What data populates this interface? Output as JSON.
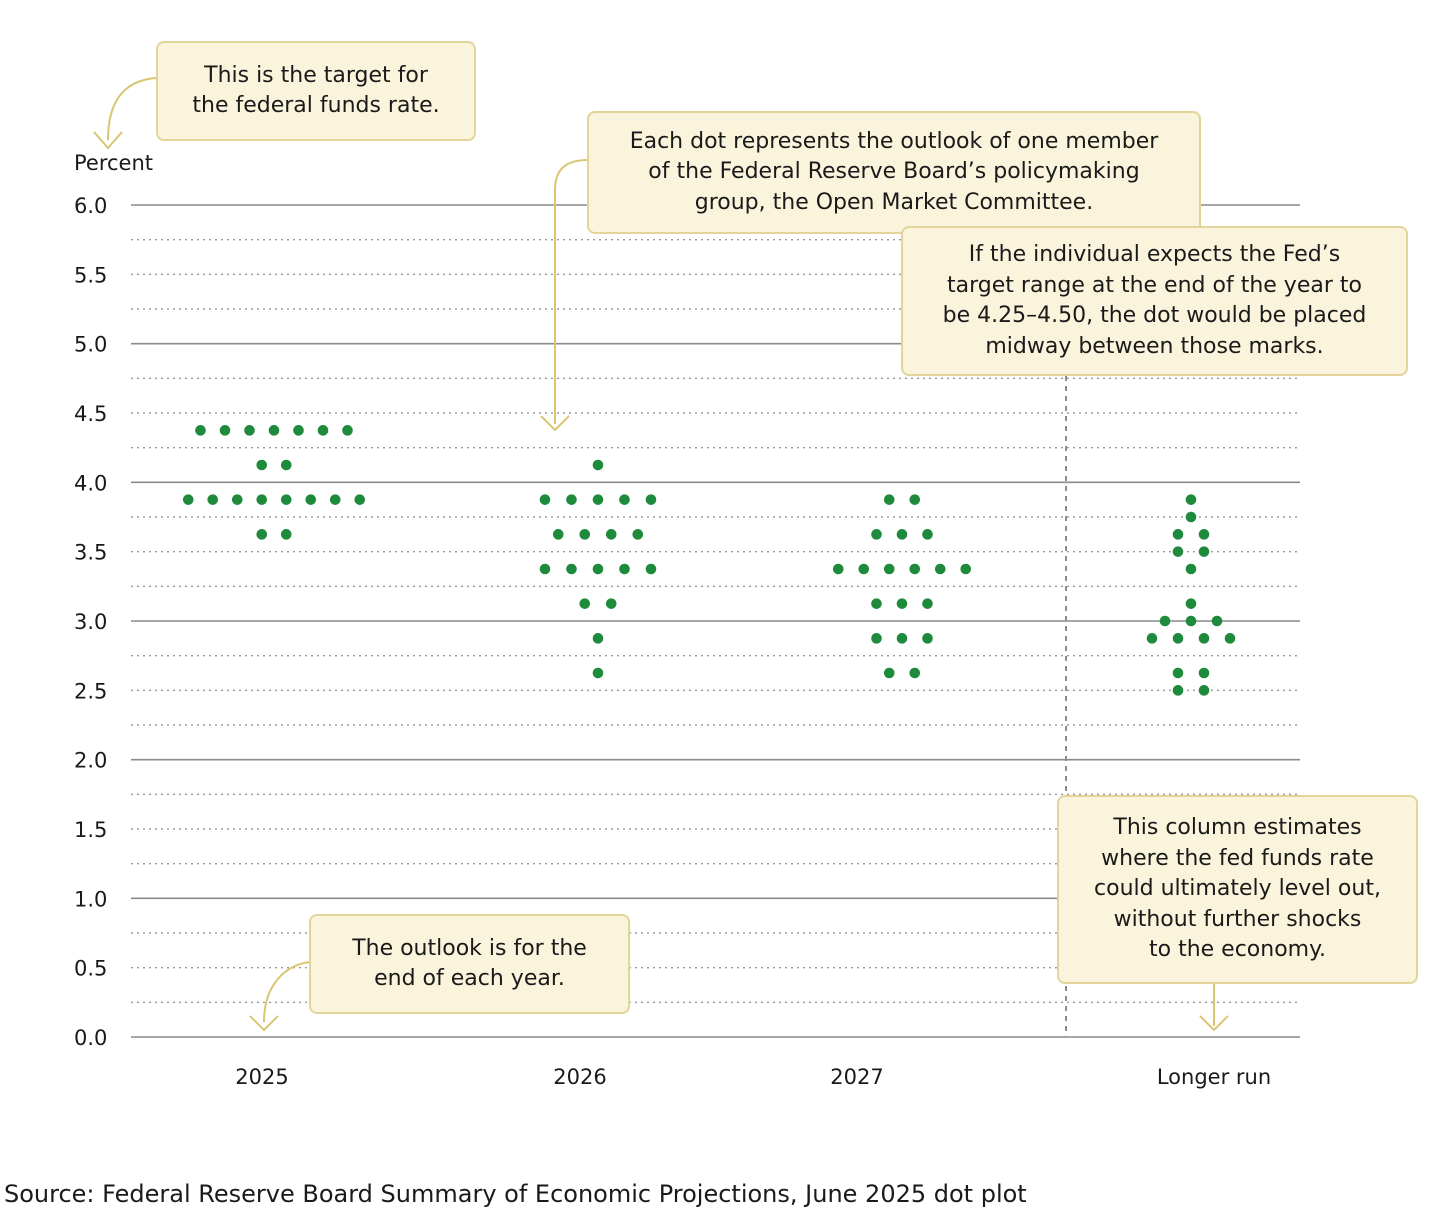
{
  "chart_data": {
    "type": "scatter",
    "title": "",
    "ylabel": "Percent",
    "xlabel": "",
    "ylim": [
      0,
      6
    ],
    "yticks": [
      "0.0",
      "0.5",
      "1.0",
      "1.5",
      "2.0",
      "2.5",
      "3.0",
      "3.5",
      "4.0",
      "4.5",
      "5.0",
      "5.5",
      "6.0"
    ],
    "categories": [
      "2025",
      "2026",
      "2027",
      "Longer run"
    ],
    "grid": true,
    "dot_color": "#1e8a3c",
    "series": [
      {
        "name": "2025",
        "rows": [
          {
            "rate": 4.375,
            "count": 7
          },
          {
            "rate": 4.125,
            "count": 2
          },
          {
            "rate": 3.875,
            "count": 8
          },
          {
            "rate": 3.625,
            "count": 2
          }
        ]
      },
      {
        "name": "2026",
        "rows": [
          {
            "rate": 4.125,
            "count": 1
          },
          {
            "rate": 3.875,
            "count": 5
          },
          {
            "rate": 3.625,
            "count": 4
          },
          {
            "rate": 3.375,
            "count": 5
          },
          {
            "rate": 3.125,
            "count": 2
          },
          {
            "rate": 2.875,
            "count": 1
          },
          {
            "rate": 2.625,
            "count": 1
          }
        ]
      },
      {
        "name": "2027",
        "rows": [
          {
            "rate": 3.875,
            "count": 2
          },
          {
            "rate": 3.625,
            "count": 3
          },
          {
            "rate": 3.375,
            "count": 6
          },
          {
            "rate": 3.125,
            "count": 3
          },
          {
            "rate": 2.875,
            "count": 3
          },
          {
            "rate": 2.625,
            "count": 2
          }
        ]
      },
      {
        "name": "Longer run",
        "rows": [
          {
            "rate": 3.875,
            "count": 1
          },
          {
            "rate": 3.75,
            "count": 1
          },
          {
            "rate": 3.625,
            "count": 2
          },
          {
            "rate": 3.5,
            "count": 2
          },
          {
            "rate": 3.375,
            "count": 1
          },
          {
            "rate": 3.125,
            "count": 1
          },
          {
            "rate": 3.0,
            "count": 3
          },
          {
            "rate": 2.875,
            "count": 4
          },
          {
            "rate": 2.625,
            "count": 2
          },
          {
            "rate": 2.5,
            "count": 2
          }
        ]
      }
    ],
    "annotations": {
      "target": [
        "This is the target for",
        "the federal funds rate."
      ],
      "dot": [
        "Each dot represents the outlook of one member",
        "of the Federal Reserve Board’s policymaking",
        "group, the Open Market Committee."
      ],
      "range": [
        "If the individual expects the Fed’s",
        "target range at the end of the year to",
        "be 4.25–4.50, the dot would be placed",
        "midway between those marks."
      ],
      "outlook": [
        "The outlook is for the",
        "end of each year."
      ],
      "longrun": [
        "This column estimates",
        "where the fed funds rate",
        "could ultimately level out,",
        "without further shocks",
        "to the economy."
      ]
    }
  },
  "source": "Source: Federal Reserve Board Summary of Economic Projections, June 2025 dot plot",
  "colors": {
    "callout_bg": "#faf4dc",
    "callout_border": "#e3d49a",
    "arrow": "#d9c673"
  }
}
